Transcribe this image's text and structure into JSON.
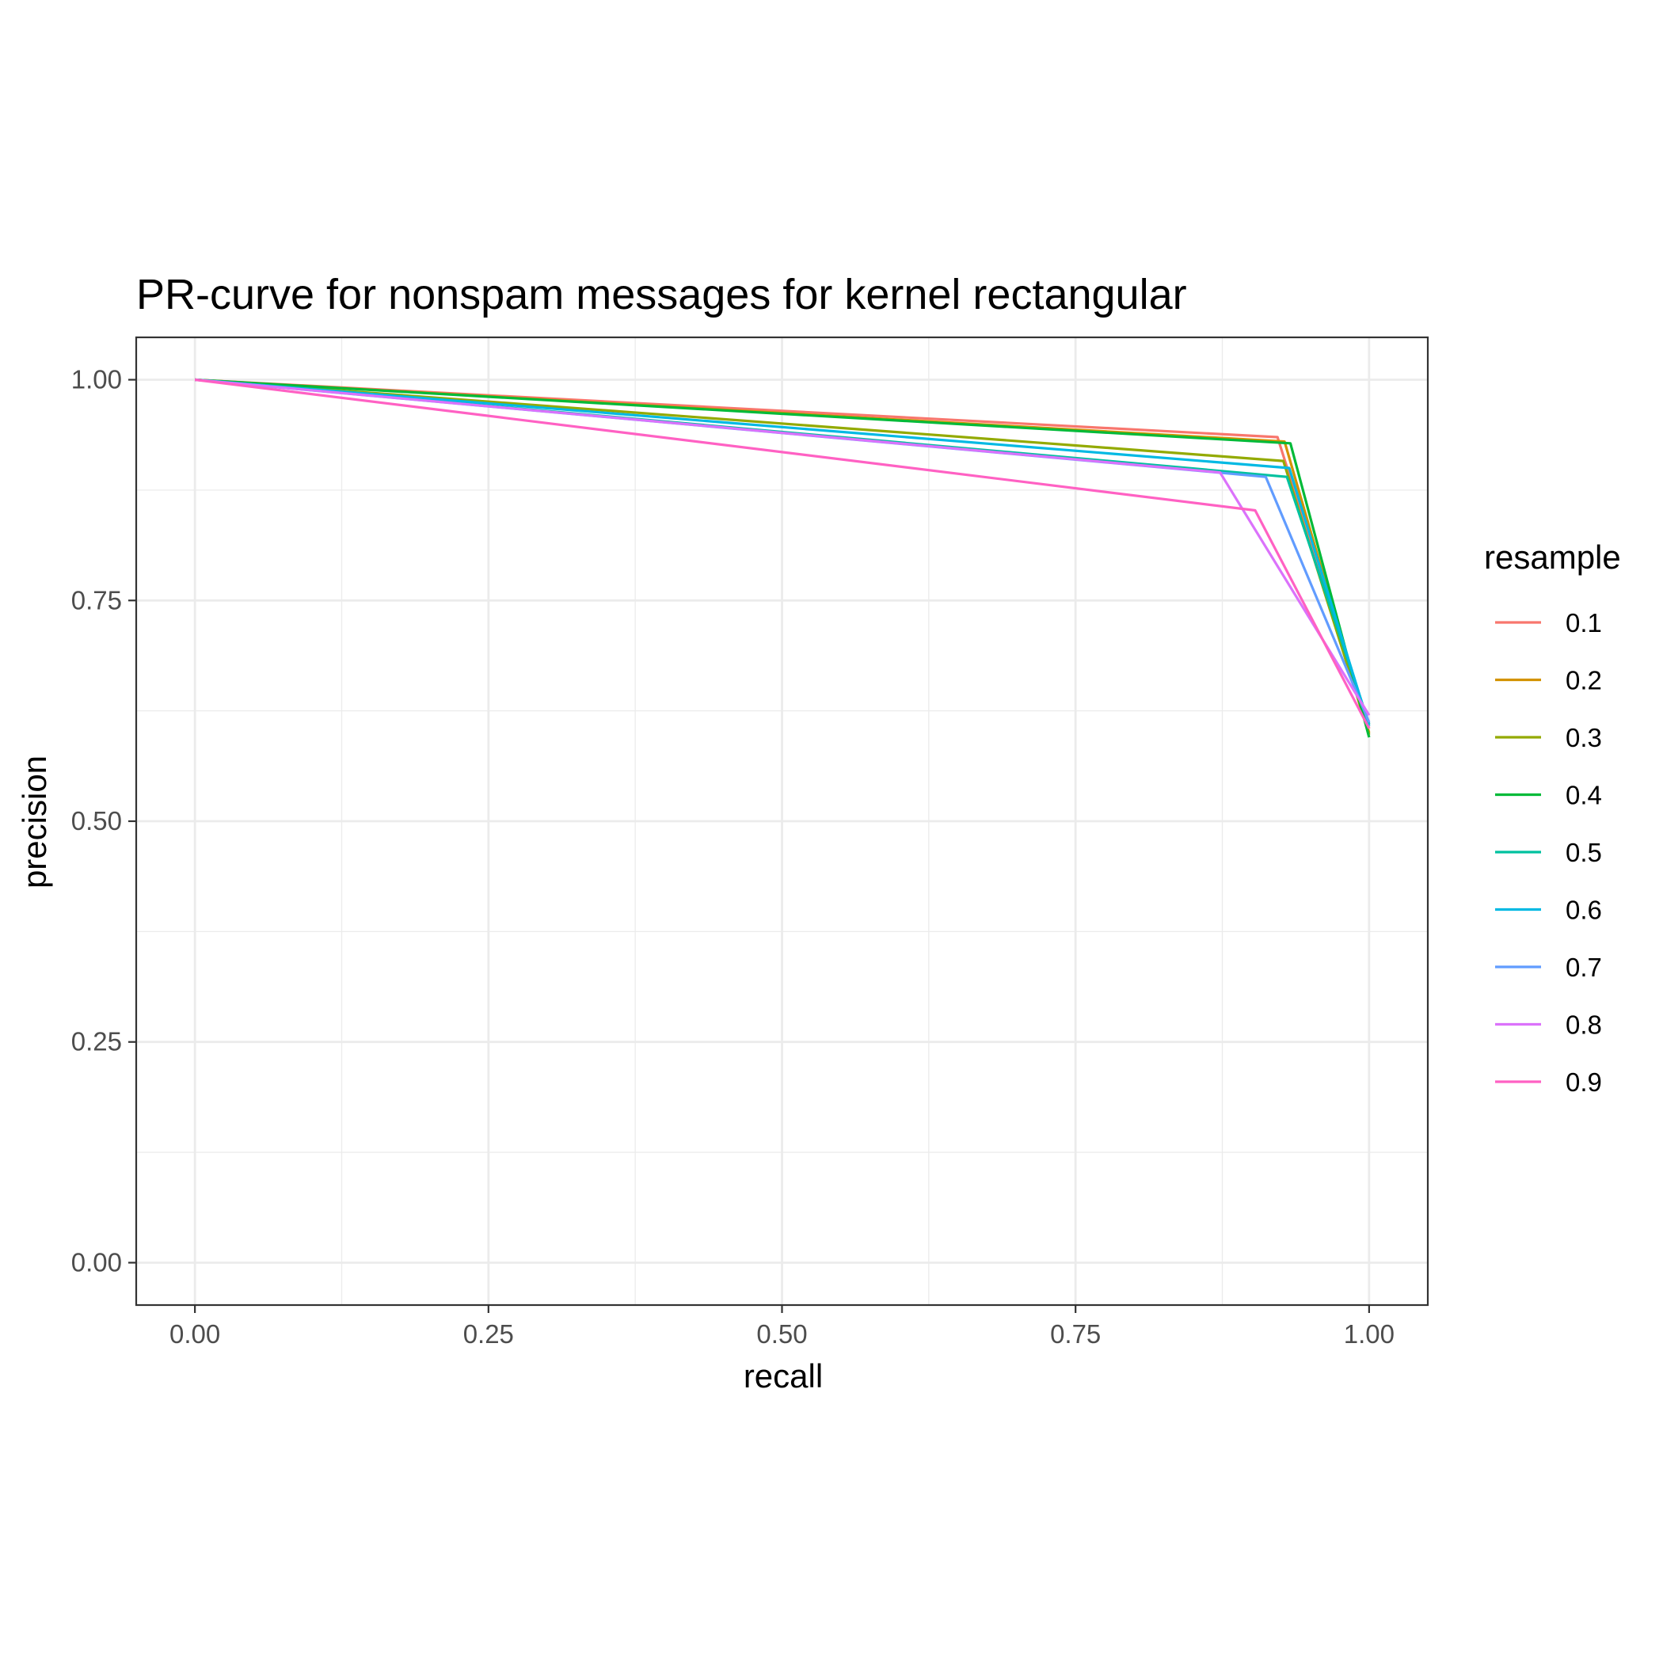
{
  "chart_data": {
    "type": "line",
    "title": "PR-curve for nonspam messages for kernel rectangular",
    "xlabel": "recall",
    "ylabel": "precision",
    "xlim": [
      -0.05,
      1.05
    ],
    "ylim": [
      -0.048,
      1.048
    ],
    "xticks": [
      "0.00",
      "0.25",
      "0.50",
      "0.75",
      "1.00"
    ],
    "yticks": [
      "0.00",
      "0.25",
      "0.50",
      "0.75",
      "1.00"
    ],
    "grid": true,
    "legend_title": "resample",
    "legend_position": "right",
    "series": [
      {
        "name": "0.1",
        "color": "#F8766D",
        "x": [
          0,
          0.922,
          1.0
        ],
        "y": [
          1.0,
          0.935,
          0.605
        ]
      },
      {
        "name": "0.2",
        "color": "#D39200",
        "x": [
          0,
          0.928,
          1.0
        ],
        "y": [
          1.0,
          0.93,
          0.6
        ]
      },
      {
        "name": "0.3",
        "color": "#93AA00",
        "x": [
          0,
          0.927,
          1.0
        ],
        "y": [
          1.0,
          0.908,
          0.598
        ]
      },
      {
        "name": "0.4",
        "color": "#00BA38",
        "x": [
          0,
          0.933,
          1.0
        ],
        "y": [
          1.0,
          0.928,
          0.595
        ]
      },
      {
        "name": "0.5",
        "color": "#00C19F",
        "x": [
          0,
          0.93,
          1.0
        ],
        "y": [
          1.0,
          0.89,
          0.61
        ]
      },
      {
        "name": "0.6",
        "color": "#00B9E3",
        "x": [
          0,
          0.932,
          1.0
        ],
        "y": [
          1.0,
          0.9,
          0.608
        ]
      },
      {
        "name": "0.7",
        "color": "#619CFF",
        "x": [
          0,
          0.912,
          1.0
        ],
        "y": [
          1.0,
          0.89,
          0.612
        ]
      },
      {
        "name": "0.8",
        "color": "#DB72FB",
        "x": [
          0,
          0.873,
          1.0
        ],
        "y": [
          1.0,
          0.895,
          0.62
        ]
      },
      {
        "name": "0.9",
        "color": "#FF61C3",
        "x": [
          0,
          0.903,
          1.0
        ],
        "y": [
          1.0,
          0.852,
          0.605
        ]
      }
    ]
  }
}
